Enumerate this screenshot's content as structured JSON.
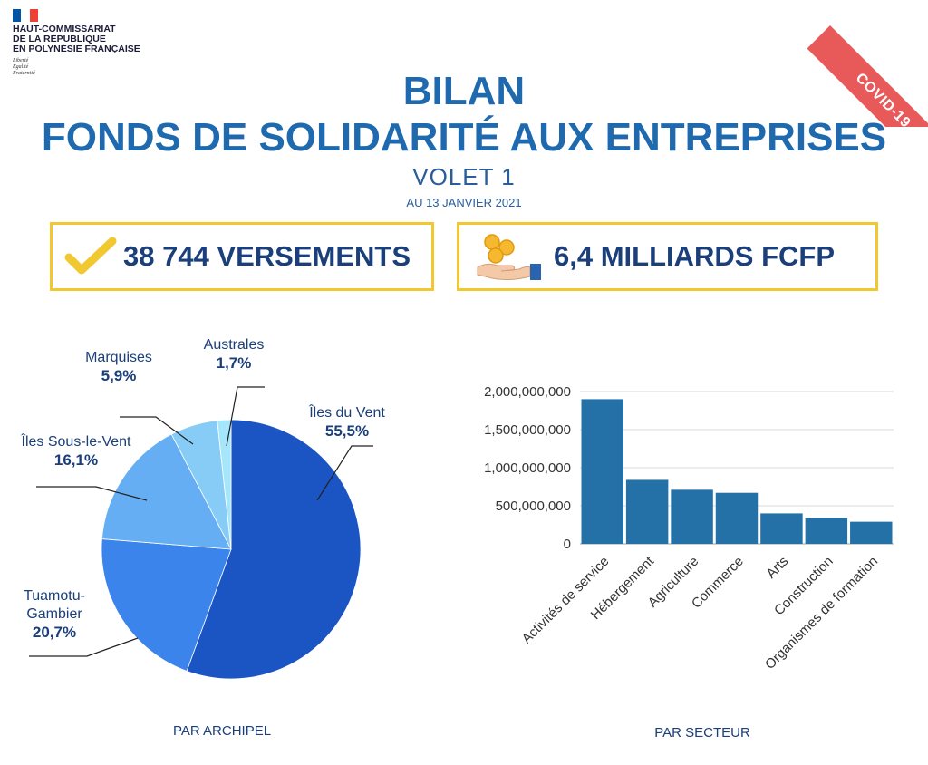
{
  "logo": {
    "org_lines": [
      "HAUT-COMMISSARIAT",
      "DE LA RÉPUBLIQUE",
      "EN POLYNÉSIE FRANÇAISE"
    ],
    "motto": [
      "Liberté",
      "Égalité",
      "Fraternité"
    ],
    "flag_colors": [
      "#0055a4",
      "#ffffff",
      "#ef4135"
    ]
  },
  "ribbon": {
    "label": "COVID-19",
    "color": "#e85a5a"
  },
  "header": {
    "title_line1": "BILAN",
    "title_line2": "FONDS DE SOLIDARITÉ AUX ENTREPRISES",
    "subtitle": "VOLET 1",
    "date": "AU 13 JANVIER 2021",
    "title_color": "#1f6aae"
  },
  "kpis": [
    {
      "icon": "checkmark-icon",
      "text": "38 744 VERSEMENTS"
    },
    {
      "icon": "coins-hand-icon",
      "text": "6,4 MILLIARDS FCFP"
    }
  ],
  "colors": {
    "accent_yellow": "#f2c830",
    "navy": "#1a3f7a"
  },
  "chart_data": [
    {
      "type": "pie",
      "footer": "PAR ARCHIPEL",
      "slices": [
        {
          "name": "Îles du Vent",
          "value": 55.5,
          "label": "55,5%",
          "color": "#1b55c4"
        },
        {
          "name": "Tuamotu-Gambier",
          "name_lines": [
            "Tuamotu-",
            "Gambier"
          ],
          "value": 20.7,
          "label": "20,7%",
          "color": "#3b84ec"
        },
        {
          "name": "Îles Sous-le-Vent",
          "value": 16.1,
          "label": "16,1%",
          "color": "#66aef3"
        },
        {
          "name": "Marquises",
          "value": 5.9,
          "label": "5,9%",
          "color": "#86ccf6"
        },
        {
          "name": "Australes",
          "value": 1.7,
          "label": "1,7%",
          "color": "#a6e6fb"
        }
      ]
    },
    {
      "type": "bar",
      "footer": "PAR SECTEUR",
      "categories": [
        "Activités de service",
        "Hébergement",
        "Agriculture",
        "Commerce",
        "Arts",
        "Construction",
        "Organismes de formation"
      ],
      "values": [
        1900000000,
        840000000,
        710000000,
        670000000,
        400000000,
        340000000,
        290000000
      ],
      "ylim": [
        0,
        2000000000
      ],
      "yticks": [
        0,
        500000000,
        1000000000,
        1500000000,
        2000000000
      ],
      "ytick_labels": [
        "0",
        "500,000,000",
        "1,000,000,000",
        "1,500,000,000",
        "2,000,000,000"
      ],
      "bar_color": "#2471a8",
      "grid": true
    }
  ]
}
